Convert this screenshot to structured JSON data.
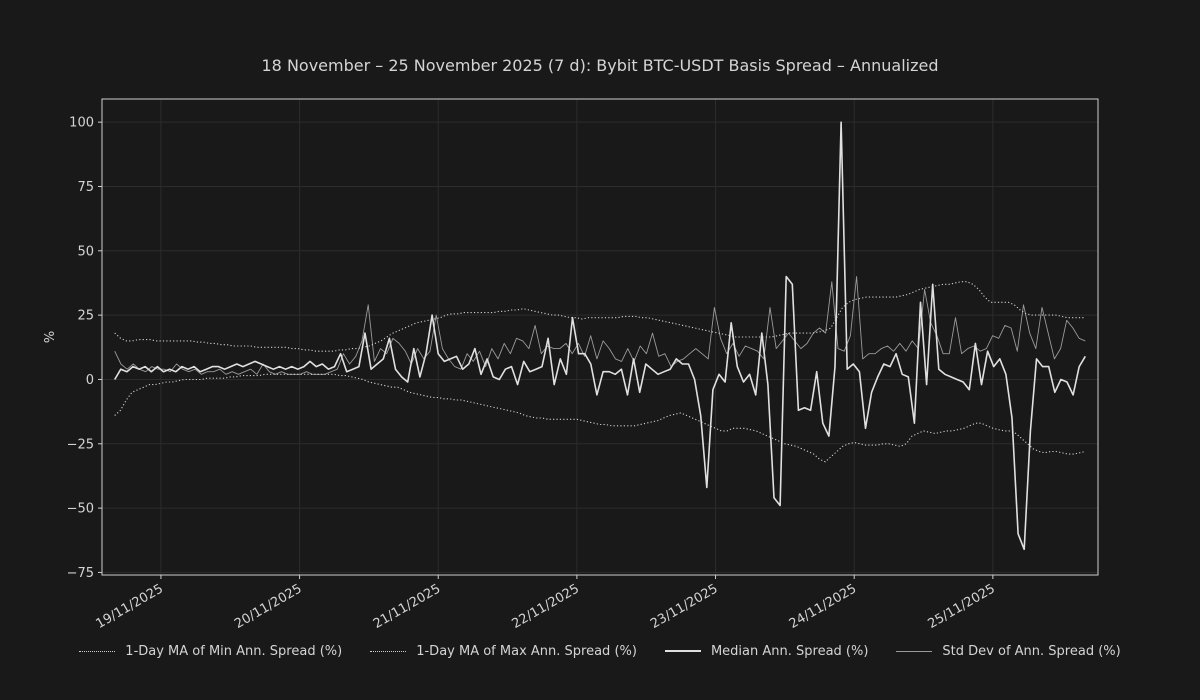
{
  "chart_data": {
    "type": "line",
    "title": "18 November – 25 November 2025 (7 d): Bybit BTC-USDT Basis Spread – Annualized",
    "xlabel": "",
    "ylabel": "%",
    "ylim": [
      -76,
      109
    ],
    "yticks": [
      100,
      75,
      50,
      25,
      0,
      -25,
      -50,
      -75
    ],
    "x_range": [
      "2025-11-18T16:00",
      "2025-11-25T16:00"
    ],
    "xlim": [
      "2025-11-18T13:48",
      "2025-11-25T18:12"
    ],
    "xticks": [
      {
        "date": "2025-11-19",
        "label": "19/11/2025"
      },
      {
        "date": "2025-11-20",
        "label": "20/11/2025"
      },
      {
        "date": "2025-11-21",
        "label": "21/11/2025"
      },
      {
        "date": "2025-11-22",
        "label": "22/11/2025"
      },
      {
        "date": "2025-11-23",
        "label": "23/11/2025"
      },
      {
        "date": "2025-11-24",
        "label": "24/11/2025"
      },
      {
        "date": "2025-11-25",
        "label": "25/11/2025"
      }
    ],
    "grid": true,
    "legend_position": "bottom",
    "series": [
      {
        "name": "1-Day MA of Min Ann. Spread (%)",
        "style": "dotted",
        "color": "#d0d0d0",
        "values": [
          -14,
          -12,
          -8,
          -5,
          -4,
          -3,
          -2,
          -2,
          -1.5,
          -1,
          -1,
          -0.5,
          0,
          0,
          0,
          0,
          0.5,
          0.5,
          0.5,
          0.5,
          1,
          1,
          1.5,
          1.5,
          1.5,
          1.5,
          2,
          2,
          2,
          2,
          2,
          2,
          2,
          2,
          2,
          2,
          2,
          2,
          2,
          1.5,
          1.5,
          1,
          0.5,
          0,
          -1,
          -1.5,
          -2,
          -2.5,
          -3,
          -3,
          -4,
          -5,
          -5.5,
          -6,
          -6.5,
          -7,
          -7,
          -7.5,
          -7.5,
          -8,
          -8,
          -8.5,
          -9,
          -9.5,
          -10,
          -10.5,
          -11,
          -11.5,
          -12,
          -12.5,
          -13,
          -14,
          -14.5,
          -15,
          -15,
          -15.5,
          -15.5,
          -15.5,
          -15.5,
          -15.5,
          -15.5,
          -16,
          -16.5,
          -17,
          -17.5,
          -17.5,
          -18,
          -18,
          -18,
          -18,
          -18,
          -17.5,
          -17,
          -16.5,
          -16,
          -15,
          -14,
          -13.5,
          -13,
          -14,
          -15,
          -16,
          -17,
          -18,
          -19,
          -20,
          -20,
          -19,
          -19,
          -19,
          -19.5,
          -20,
          -21,
          -22,
          -23,
          -24,
          -25,
          -25.5,
          -26,
          -27,
          -28,
          -29,
          -31,
          -32,
          -30,
          -28,
          -26,
          -25,
          -24.5,
          -25,
          -25.5,
          -25.5,
          -25.5,
          -25,
          -25,
          -25.5,
          -26,
          -25,
          -22,
          -21,
          -20,
          -20.5,
          -21,
          -20.5,
          -20,
          -20,
          -19.5,
          -19,
          -18,
          -17,
          -17,
          -18,
          -19,
          -19.5,
          -20,
          -20,
          -21,
          -23,
          -25,
          -27,
          -28,
          -28.5,
          -28,
          -28,
          -28.5,
          -29,
          -29,
          -28.5,
          -28
        ]
      },
      {
        "name": "1-Day MA of Max Ann. Spread (%)",
        "style": "dotted",
        "color": "#d0d0d0",
        "values": [
          18,
          16,
          15,
          15,
          15.5,
          15.5,
          15.5,
          15,
          15,
          15,
          15,
          15,
          15,
          15,
          14.5,
          14.5,
          14,
          14,
          13.5,
          13.5,
          13,
          13,
          13,
          13,
          12.5,
          12.5,
          12.5,
          12.5,
          12.5,
          12.5,
          12,
          12,
          11.5,
          11.5,
          11,
          11,
          11,
          11,
          11.5,
          11.5,
          12,
          12,
          12.5,
          13,
          14,
          15,
          16.5,
          18,
          19,
          20,
          21,
          22,
          22.5,
          23,
          23.5,
          24,
          25,
          25.5,
          25.5,
          26,
          26,
          26,
          26,
          26,
          26,
          26.5,
          26.5,
          27,
          27,
          27.5,
          27,
          26.5,
          26,
          25.5,
          25,
          25,
          24.5,
          24,
          24,
          23.5,
          24,
          24,
          24,
          24,
          24,
          24,
          24.5,
          24.5,
          24.5,
          24,
          24,
          23.5,
          23,
          22.5,
          22,
          21.5,
          21,
          20.5,
          20,
          19.5,
          19,
          18.5,
          18,
          17.5,
          17,
          16.5,
          16.5,
          16.5,
          16.5,
          16.5,
          16.5,
          16.5,
          17,
          17.5,
          18,
          18,
          18,
          18,
          18,
          18.5,
          19,
          20,
          24,
          28,
          30,
          31,
          31.5,
          32,
          32,
          32,
          32,
          32,
          32,
          32.5,
          33,
          34,
          35,
          35.5,
          36,
          36.5,
          37,
          37,
          37.5,
          38,
          38,
          37,
          35,
          32,
          30,
          30,
          30,
          30,
          29,
          27,
          25.5,
          25,
          25,
          25,
          25,
          25,
          24.5,
          24,
          24,
          24,
          24
        ]
      },
      {
        "name": "Median Ann. Spread (%)",
        "style": "solid",
        "color": "#e0e0e0",
        "values": [
          0,
          4,
          3,
          5,
          4,
          5,
          3,
          5,
          3,
          4,
          3,
          5,
          4,
          5,
          3,
          4,
          5,
          5,
          4,
          5,
          6,
          5,
          6,
          7,
          6,
          5,
          4,
          5,
          4,
          5,
          4,
          5,
          7,
          5,
          6,
          4,
          5,
          10,
          3,
          4,
          5,
          18,
          4,
          6,
          8,
          16,
          4,
          1,
          -1,
          12,
          1,
          10,
          25,
          10,
          7,
          8,
          9,
          4,
          6,
          12,
          2,
          8,
          1,
          0,
          4,
          5,
          -2,
          7,
          3,
          4,
          5,
          16,
          -2,
          8,
          2,
          24,
          10,
          10,
          6,
          -6,
          3,
          3,
          2,
          4,
          -6,
          8,
          -5,
          6,
          4,
          2,
          3,
          4,
          8,
          6,
          6,
          0,
          -14,
          -42,
          -4,
          2,
          -1,
          22,
          5,
          -1,
          2,
          -6,
          18,
          -2,
          -46,
          -49,
          40,
          37,
          -12,
          -11,
          -12,
          3,
          -17,
          -22,
          5,
          100,
          4,
          6,
          3,
          -19,
          -5,
          1,
          6,
          5,
          10,
          2,
          1,
          -17,
          30,
          -2,
          37,
          4,
          2,
          1,
          0,
          -1,
          -4,
          14,
          -2,
          11,
          5,
          8,
          2,
          -15,
          -60,
          -66,
          -20,
          8,
          5,
          5,
          -5,
          0,
          -1,
          -6,
          5,
          9
        ]
      },
      {
        "name": "Std Dev of Ann. Spread (%)",
        "style": "solid",
        "color": "#9a9a9a",
        "values": [
          11,
          6,
          4,
          6,
          4,
          3,
          5,
          4,
          4,
          3,
          6,
          4,
          3,
          4,
          2,
          3,
          3,
          4,
          2,
          3,
          2,
          3,
          4,
          2,
          6,
          3,
          2,
          3,
          2,
          2,
          2,
          3,
          2,
          2,
          2,
          3,
          4,
          10,
          6,
          9,
          15,
          29,
          7,
          12,
          10,
          16,
          14,
          11,
          6,
          12,
          8,
          11,
          25,
          12,
          8,
          5,
          4,
          10,
          7,
          11,
          5,
          12,
          8,
          14,
          10,
          16,
          15,
          12,
          21,
          10,
          13,
          12,
          12,
          14,
          10,
          14,
          9,
          17,
          8,
          15,
          12,
          8,
          7,
          12,
          7,
          13,
          10,
          18,
          9,
          10,
          5,
          7,
          8,
          10,
          12,
          10,
          8,
          28,
          16,
          10,
          14,
          9,
          13,
          12,
          11,
          8,
          28,
          12,
          15,
          18,
          15,
          12,
          14,
          18,
          20,
          18,
          38,
          12,
          11,
          17,
          40,
          8,
          10,
          10,
          12,
          13,
          11,
          14,
          11,
          15,
          12,
          35,
          22,
          17,
          10,
          10,
          24,
          10,
          12,
          13,
          11,
          12,
          17,
          16,
          21,
          20,
          11,
          29,
          18,
          12,
          28,
          18,
          8,
          12,
          23,
          20,
          16,
          15
        ]
      }
    ]
  }
}
